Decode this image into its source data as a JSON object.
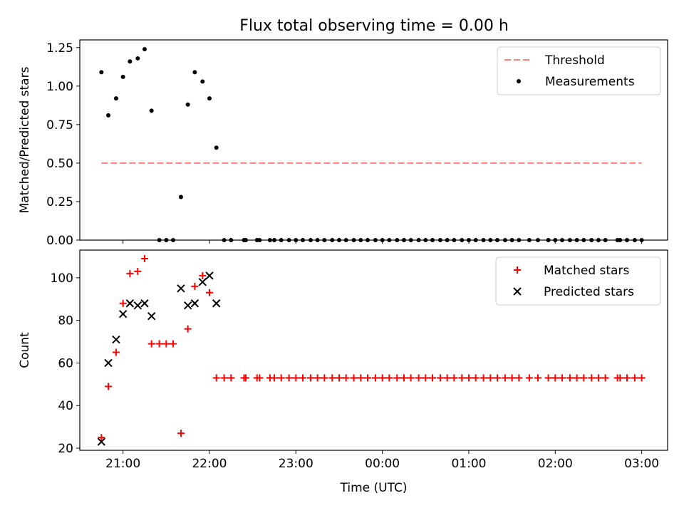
{
  "title": "Flux total observing time = 0.00 h",
  "chart_data": [
    {
      "type": "scatter",
      "xlabel": "",
      "ylabel": "Matched/Predicted stars",
      "xlim": [
        20.5,
        27.3
      ],
      "ylim": [
        0,
        1.3
      ],
      "xticks": [
        21,
        22,
        23,
        24,
        25,
        26,
        27
      ],
      "yticks": [
        0,
        0.25,
        0.5,
        0.75,
        1.0,
        1.25
      ],
      "yticklabels": [
        "0.00",
        "0.25",
        "0.50",
        "0.75",
        "1.00",
        "1.25"
      ],
      "legend": {
        "position": "top-right",
        "entries": [
          "Threshold",
          "Measurements"
        ]
      },
      "threshold": {
        "name": "Threshold",
        "y": 0.5,
        "x": [
          20.75,
          27.0
        ],
        "color": "#ff7f7f"
      },
      "series": [
        {
          "name": "Measurements",
          "marker": "dot",
          "color": "#000000",
          "x": [
            20.75,
            20.83,
            20.92,
            21.0,
            21.08,
            21.17,
            21.25,
            21.33,
            21.42,
            21.5,
            21.58,
            21.67,
            21.75,
            21.83,
            21.92,
            22.0,
            22.08,
            22.17,
            22.25,
            22.4,
            22.42,
            22.55,
            22.58,
            22.7,
            22.75,
            22.83,
            22.92,
            23.0,
            23.08,
            23.17,
            23.25,
            23.33,
            23.42,
            23.5,
            23.58,
            23.67,
            23.75,
            23.83,
            23.92,
            24.0,
            24.08,
            24.17,
            24.25,
            24.33,
            24.42,
            24.5,
            24.58,
            24.67,
            24.75,
            24.83,
            24.92,
            25.0,
            25.08,
            25.17,
            25.25,
            25.33,
            25.42,
            25.5,
            25.58,
            25.7,
            25.8,
            25.92,
            26.0,
            26.08,
            26.17,
            26.25,
            26.33,
            26.42,
            26.5,
            26.58,
            26.72,
            26.75,
            26.83,
            26.92,
            27.0
          ],
          "y": [
            1.09,
            0.81,
            0.92,
            1.06,
            1.16,
            1.18,
            1.24,
            0.84,
            0,
            0,
            0,
            0.28,
            0.88,
            1.09,
            1.03,
            0.92,
            0.6,
            0,
            0,
            0,
            0,
            0,
            0,
            0,
            0,
            0,
            0,
            0,
            0,
            0,
            0,
            0,
            0,
            0,
            0,
            0,
            0,
            0,
            0,
            0,
            0,
            0,
            0,
            0,
            0,
            0,
            0,
            0,
            0,
            0,
            0,
            0,
            0,
            0,
            0,
            0,
            0,
            0,
            0,
            0,
            0,
            0,
            0,
            0,
            0,
            0,
            0,
            0,
            0,
            0,
            0,
            0,
            0,
            0,
            0
          ]
        }
      ]
    },
    {
      "type": "scatter",
      "xlabel": "Time (UTC)",
      "ylabel": "Count",
      "xlim": [
        20.5,
        27.3
      ],
      "ylim": [
        19,
        113
      ],
      "xticks": [
        21,
        22,
        23,
        24,
        25,
        26,
        27
      ],
      "xticklabels": [
        "21:00",
        "22:00",
        "23:00",
        "00:00",
        "01:00",
        "02:00",
        "03:00"
      ],
      "yticks": [
        20,
        40,
        60,
        80,
        100
      ],
      "yticklabels": [
        "20",
        "40",
        "60",
        "80",
        "100"
      ],
      "legend": {
        "position": "top-right",
        "entries": [
          "Matched stars",
          "Predicted stars"
        ]
      },
      "series": [
        {
          "name": "Matched stars",
          "marker": "plus",
          "color": "#ff0000",
          "x": [
            20.75,
            20.83,
            20.92,
            21.0,
            21.08,
            21.17,
            21.25,
            21.33,
            21.42,
            21.5,
            21.58,
            21.67,
            21.75,
            21.83,
            21.92,
            22.0,
            22.08,
            22.17,
            22.25,
            22.4,
            22.42,
            22.55,
            22.58,
            22.7,
            22.75,
            22.83,
            22.92,
            23.0,
            23.08,
            23.17,
            23.25,
            23.33,
            23.42,
            23.5,
            23.58,
            23.67,
            23.75,
            23.83,
            23.92,
            24.0,
            24.08,
            24.17,
            24.25,
            24.33,
            24.42,
            24.5,
            24.58,
            24.67,
            24.75,
            24.83,
            24.92,
            25.0,
            25.08,
            25.17,
            25.25,
            25.33,
            25.42,
            25.5,
            25.58,
            25.7,
            25.8,
            25.92,
            26.0,
            26.08,
            26.17,
            26.25,
            26.33,
            26.42,
            26.5,
            26.58,
            26.72,
            26.75,
            26.83,
            26.92,
            27.0
          ],
          "y": [
            25,
            49,
            65,
            88,
            102,
            103,
            109,
            69,
            69,
            69,
            69,
            27,
            76,
            96,
            101,
            93,
            53,
            53,
            53,
            53,
            53,
            53,
            53,
            53,
            53,
            53,
            53,
            53,
            53,
            53,
            53,
            53,
            53,
            53,
            53,
            53,
            53,
            53,
            53,
            53,
            53,
            53,
            53,
            53,
            53,
            53,
            53,
            53,
            53,
            53,
            53,
            53,
            53,
            53,
            53,
            53,
            53,
            53,
            53,
            53,
            53,
            53,
            53,
            53,
            53,
            53,
            53,
            53,
            53,
            53,
            53,
            53,
            53,
            53,
            53
          ]
        },
        {
          "name": "Predicted stars",
          "marker": "x",
          "color": "#000000",
          "x": [
            20.75,
            20.83,
            20.92,
            21.0,
            21.08,
            21.17,
            21.25,
            21.33,
            21.67,
            21.75,
            21.83,
            21.92,
            22.0,
            22.08
          ],
          "y": [
            23,
            60,
            71,
            83,
            88,
            87,
            88,
            82,
            95,
            87,
            88,
            98,
            101,
            88
          ]
        }
      ]
    }
  ]
}
